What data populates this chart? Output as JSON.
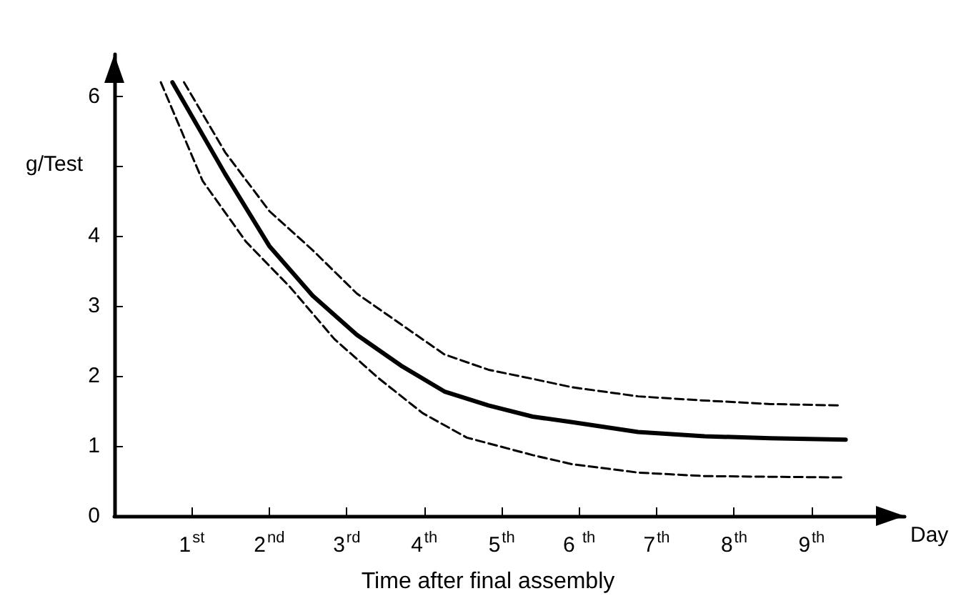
{
  "chart_data": {
    "type": "line",
    "xlabel": "Time after final assembly",
    "ylabel": "g/Test",
    "annotations": [
      "Day"
    ],
    "xlim": [
      0,
      10.2
    ],
    "ylim": [
      0,
      6.6
    ],
    "xticks": [
      {
        "value": 1,
        "label": "1$^{st}$"
      },
      {
        "value": 2,
        "label": "2$^{nd}$"
      },
      {
        "value": 3,
        "label": "3$^{rd}$"
      },
      {
        "value": 4,
        "label": "4$^{th}$"
      },
      {
        "value": 5,
        "label": "5$^{th}$"
      },
      {
        "value": 6,
        "label": "6 $^{th}$"
      },
      {
        "value": 7,
        "label": "7$^{th}$"
      },
      {
        "value": 8,
        "label": "8$^{th}$"
      },
      {
        "value": 9,
        "label": "9$^{th}$"
      }
    ],
    "yticks": [
      0,
      1,
      2,
      3,
      4,
      {
        "value": 5,
        "label": null
      },
      6
    ],
    "grid": false,
    "marker": "none",
    "series": [
      {
        "color": "#000000",
        "line_style": "solid",
        "x": [
          0.75,
          1.43,
          2.0,
          2.56,
          3.13,
          3.7,
          4.26,
          4.83,
          5.4,
          5.91,
          6.76,
          7.62,
          8.47,
          9.44
        ],
        "values": [
          6.2,
          4.89,
          3.86,
          3.15,
          2.59,
          2.15,
          1.78,
          1.58,
          1.42,
          1.34,
          1.2,
          1.14,
          1.11,
          1.09
        ]
      },
      {
        "color": "#000000",
        "line_style": "dashed",
        "x": [
          0.9,
          1.43,
          2.0,
          2.56,
          3.13,
          3.7,
          4.26,
          4.83,
          5.4,
          5.91,
          6.76,
          7.62,
          8.47,
          9.35
        ],
        "values": [
          6.2,
          5.2,
          4.36,
          3.8,
          3.18,
          2.74,
          2.31,
          2.09,
          1.96,
          1.84,
          1.71,
          1.65,
          1.6,
          1.58
        ]
      },
      {
        "color": "#000000",
        "line_style": "dashed",
        "x": [
          0.6,
          1.14,
          1.7,
          2.27,
          2.84,
          3.41,
          3.98,
          4.55,
          5.4,
          5.91,
          6.76,
          7.62,
          8.47,
          9.43
        ],
        "values": [
          6.2,
          4.79,
          3.92,
          3.27,
          2.53,
          1.97,
          1.47,
          1.12,
          0.87,
          0.74,
          0.62,
          0.57,
          0.56,
          0.55
        ]
      }
    ]
  }
}
